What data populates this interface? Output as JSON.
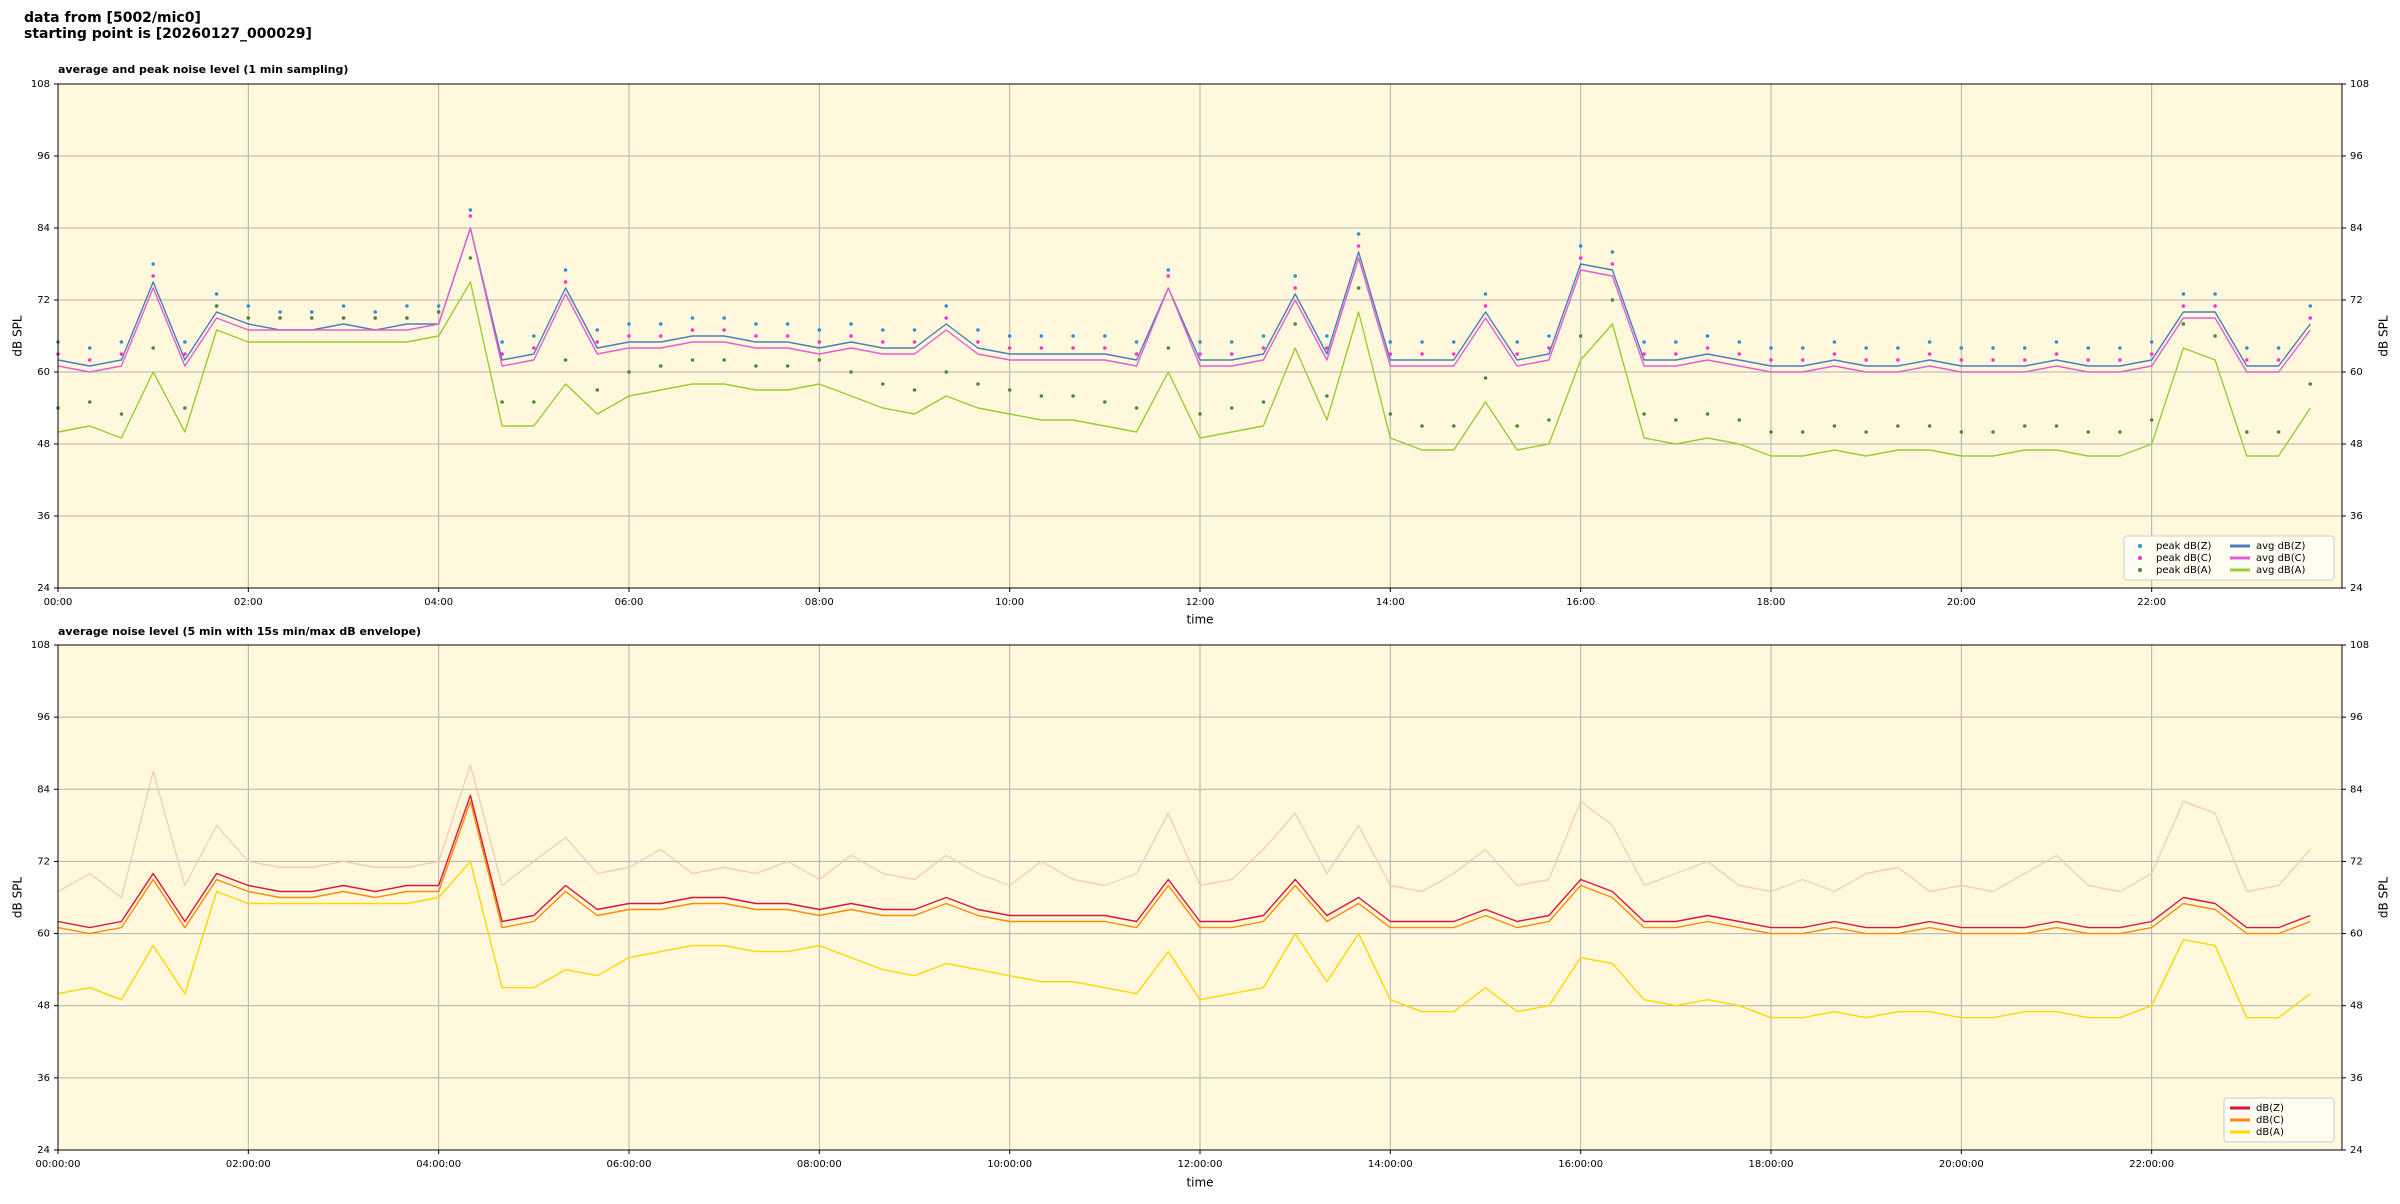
{
  "header": {
    "line1": "data from [5002/mic0]",
    "line2": "starting point is [20260127_000029]"
  },
  "chart_data": [
    {
      "type": "line",
      "title": "average and peak noise level (1 min sampling)",
      "xlabel": "time",
      "ylabel": "dB SPL",
      "x": [
        0,
        20,
        40,
        60,
        80,
        100,
        120,
        140,
        160,
        180,
        200,
        220,
        240,
        260,
        280,
        300,
        320,
        340,
        360,
        380,
        400,
        420,
        440,
        460,
        480,
        500,
        520,
        540,
        560,
        580,
        600,
        620,
        640,
        660,
        680,
        700,
        720,
        740,
        760,
        780,
        800,
        820,
        840,
        860,
        880,
        900,
        920,
        940,
        960,
        980,
        1000,
        1020,
        1040,
        1060,
        1080,
        1100,
        1120,
        1140,
        1160,
        1180,
        1200,
        1220,
        1240,
        1260,
        1280,
        1300,
        1320,
        1340,
        1360,
        1380,
        1400,
        1420
      ],
      "xlim": [
        0,
        1440
      ],
      "xticks": [
        {
          "value": 0,
          "label": "00:00"
        },
        {
          "value": 120,
          "label": "02:00"
        },
        {
          "value": 240,
          "label": "04:00"
        },
        {
          "value": 360,
          "label": "06:00"
        },
        {
          "value": 480,
          "label": "08:00"
        },
        {
          "value": 600,
          "label": "10:00"
        },
        {
          "value": 720,
          "label": "12:00"
        },
        {
          "value": 840,
          "label": "14:00"
        },
        {
          "value": 960,
          "label": "16:00"
        },
        {
          "value": 1080,
          "label": "18:00"
        },
        {
          "value": 1200,
          "label": "20:00"
        },
        {
          "value": 1320,
          "label": "22:00"
        }
      ],
      "ylim": [
        24,
        108
      ],
      "yticks": [
        24,
        36,
        48,
        60,
        72,
        84,
        96,
        108
      ],
      "grid": true,
      "legend": "lower right",
      "legend_columns": 2,
      "background": "#fff8dc",
      "series": [
        {
          "name": "peak dB(Z)",
          "color": "#2f8fd8",
          "style": "dots",
          "values": [
            65,
            64,
            65,
            78,
            65,
            73,
            71,
            70,
            70,
            71,
            70,
            71,
            71,
            87,
            65,
            66,
            77,
            67,
            68,
            68,
            69,
            69,
            68,
            68,
            67,
            68,
            67,
            67,
            71,
            67,
            66,
            66,
            66,
            66,
            65,
            77,
            65,
            65,
            66,
            76,
            66,
            83,
            65,
            65,
            65,
            73,
            65,
            66,
            81,
            80,
            65,
            65,
            66,
            65,
            64,
            64,
            65,
            64,
            64,
            65,
            64,
            64,
            64,
            65,
            64,
            64,
            65,
            73,
            73,
            64,
            64,
            71
          ]
        },
        {
          "name": "peak dB(C)",
          "color": "#ff33cc",
          "style": "dots",
          "values": [
            63,
            62,
            63,
            76,
            63,
            71,
            69,
            69,
            69,
            69,
            69,
            69,
            70,
            86,
            63,
            64,
            75,
            65,
            66,
            66,
            67,
            67,
            66,
            66,
            65,
            66,
            65,
            65,
            69,
            65,
            64,
            64,
            64,
            64,
            63,
            76,
            63,
            63,
            64,
            74,
            64,
            81,
            63,
            63,
            63,
            71,
            63,
            64,
            79,
            78,
            63,
            63,
            64,
            63,
            62,
            62,
            63,
            62,
            62,
            63,
            62,
            62,
            62,
            63,
            62,
            62,
            63,
            71,
            71,
            62,
            62,
            69
          ]
        },
        {
          "name": "peak dB(A)",
          "color": "#4f8a3a",
          "style": "dots",
          "values": [
            54,
            55,
            53,
            64,
            54,
            71,
            69,
            69,
            69,
            69,
            69,
            69,
            70,
            79,
            55,
            55,
            62,
            57,
            60,
            61,
            62,
            62,
            61,
            61,
            62,
            60,
            58,
            57,
            60,
            58,
            57,
            56,
            56,
            55,
            54,
            64,
            53,
            54,
            55,
            68,
            56,
            74,
            53,
            51,
            51,
            59,
            51,
            52,
            66,
            72,
            53,
            52,
            53,
            52,
            50,
            50,
            51,
            50,
            51,
            51,
            50,
            50,
            51,
            51,
            50,
            50,
            52,
            68,
            66,
            50,
            50,
            58
          ]
        },
        {
          "name": "avg dB(Z)",
          "color": "#4a7eb8",
          "style": "line",
          "values": [
            62,
            61,
            62,
            75,
            62,
            70,
            68,
            67,
            67,
            68,
            67,
            68,
            68,
            84,
            62,
            63,
            74,
            64,
            65,
            65,
            66,
            66,
            65,
            65,
            64,
            65,
            64,
            64,
            68,
            64,
            63,
            63,
            63,
            63,
            62,
            74,
            62,
            62,
            63,
            73,
            63,
            80,
            62,
            62,
            62,
            70,
            62,
            63,
            78,
            77,
            62,
            62,
            63,
            62,
            61,
            61,
            62,
            61,
            61,
            62,
            61,
            61,
            61,
            62,
            61,
            61,
            62,
            70,
            70,
            61,
            61,
            68
          ]
        },
        {
          "name": "avg dB(C)",
          "color": "#e060d0",
          "style": "line",
          "values": [
            61,
            60,
            61,
            74,
            61,
            69,
            67,
            67,
            67,
            67,
            67,
            67,
            68,
            84,
            61,
            62,
            73,
            63,
            64,
            64,
            65,
            65,
            64,
            64,
            63,
            64,
            63,
            63,
            67,
            63,
            62,
            62,
            62,
            62,
            61,
            74,
            61,
            61,
            62,
            72,
            62,
            79,
            61,
            61,
            61,
            69,
            61,
            62,
            77,
            76,
            61,
            61,
            62,
            61,
            60,
            60,
            61,
            60,
            60,
            61,
            60,
            60,
            60,
            61,
            60,
            60,
            61,
            69,
            69,
            60,
            60,
            67
          ]
        },
        {
          "name": "avg dB(A)",
          "color": "#9acd32",
          "style": "line",
          "values": [
            50,
            51,
            49,
            60,
            50,
            67,
            65,
            65,
            65,
            65,
            65,
            65,
            66,
            75,
            51,
            51,
            58,
            53,
            56,
            57,
            58,
            58,
            57,
            57,
            58,
            56,
            54,
            53,
            56,
            54,
            53,
            52,
            52,
            51,
            50,
            60,
            49,
            50,
            51,
            64,
            52,
            70,
            49,
            47,
            47,
            55,
            47,
            48,
            62,
            68,
            49,
            48,
            49,
            48,
            46,
            46,
            47,
            46,
            47,
            47,
            46,
            46,
            47,
            47,
            46,
            46,
            48,
            64,
            62,
            46,
            46,
            54
          ]
        }
      ]
    },
    {
      "type": "line",
      "title": "average noise level (5 min with 15s min/max dB envelope)",
      "xlabel": "time",
      "ylabel": "dB SPL",
      "x": [
        0,
        20,
        40,
        60,
        80,
        100,
        120,
        140,
        160,
        180,
        200,
        220,
        240,
        260,
        280,
        300,
        320,
        340,
        360,
        380,
        400,
        420,
        440,
        460,
        480,
        500,
        520,
        540,
        560,
        580,
        600,
        620,
        640,
        660,
        680,
        700,
        720,
        740,
        760,
        780,
        800,
        820,
        840,
        860,
        880,
        900,
        920,
        940,
        960,
        980,
        1000,
        1020,
        1040,
        1060,
        1080,
        1100,
        1120,
        1140,
        1160,
        1180,
        1200,
        1220,
        1240,
        1260,
        1280,
        1300,
        1320,
        1340,
        1360,
        1380,
        1400,
        1420
      ],
      "xlim": [
        0,
        1440
      ],
      "xticks": [
        {
          "value": 0,
          "label": "00:00:00"
        },
        {
          "value": 120,
          "label": "02:00:00"
        },
        {
          "value": 240,
          "label": "04:00:00"
        },
        {
          "value": 360,
          "label": "06:00:00"
        },
        {
          "value": 480,
          "label": "08:00:00"
        },
        {
          "value": 600,
          "label": "10:00:00"
        },
        {
          "value": 720,
          "label": "12:00:00"
        },
        {
          "value": 840,
          "label": "14:00:00"
        },
        {
          "value": 960,
          "label": "16:00:00"
        },
        {
          "value": 1080,
          "label": "18:00:00"
        },
        {
          "value": 1200,
          "label": "20:00:00"
        },
        {
          "value": 1320,
          "label": "22:00:00"
        }
      ],
      "ylim": [
        24,
        108
      ],
      "yticks": [
        24,
        36,
        48,
        60,
        72,
        84,
        96,
        108
      ],
      "grid": true,
      "legend": "lower right",
      "legend_columns": 1,
      "background": "#fff8dc",
      "envelope": {
        "color": "#f5c2ae",
        "values": [
          67,
          70,
          66,
          87,
          68,
          78,
          72,
          71,
          71,
          72,
          71,
          71,
          72,
          88,
          68,
          72,
          76,
          70,
          71,
          74,
          70,
          71,
          70,
          72,
          69,
          73,
          70,
          69,
          73,
          70,
          68,
          72,
          69,
          68,
          70,
          80,
          68,
          69,
          74,
          80,
          70,
          78,
          68,
          67,
          70,
          74,
          68,
          69,
          82,
          78,
          68,
          70,
          72,
          68,
          67,
          69,
          67,
          70,
          71,
          67,
          68,
          67,
          70,
          73,
          68,
          67,
          70,
          82,
          80,
          67,
          68,
          74
        ]
      },
      "series": [
        {
          "name": "dB(Z)",
          "color": "#dc143c",
          "style": "line",
          "values": [
            62,
            61,
            62,
            70,
            62,
            70,
            68,
            67,
            67,
            68,
            67,
            68,
            68,
            83,
            62,
            63,
            68,
            64,
            65,
            65,
            66,
            66,
            65,
            65,
            64,
            65,
            64,
            64,
            66,
            64,
            63,
            63,
            63,
            63,
            62,
            69,
            62,
            62,
            63,
            69,
            63,
            66,
            62,
            62,
            62,
            64,
            62,
            63,
            69,
            67,
            62,
            62,
            63,
            62,
            61,
            61,
            62,
            61,
            61,
            62,
            61,
            61,
            61,
            62,
            61,
            61,
            62,
            66,
            65,
            61,
            61,
            63
          ]
        },
        {
          "name": "dB(C)",
          "color": "#ff8c00",
          "style": "line",
          "values": [
            61,
            60,
            61,
            69,
            61,
            69,
            67,
            66,
            66,
            67,
            66,
            67,
            67,
            82,
            61,
            62,
            67,
            63,
            64,
            64,
            65,
            65,
            64,
            64,
            63,
            64,
            63,
            63,
            65,
            63,
            62,
            62,
            62,
            62,
            61,
            68,
            61,
            61,
            62,
            68,
            62,
            65,
            61,
            61,
            61,
            63,
            61,
            62,
            68,
            66,
            61,
            61,
            62,
            61,
            60,
            60,
            61,
            60,
            60,
            61,
            60,
            60,
            60,
            61,
            60,
            60,
            61,
            65,
            64,
            60,
            60,
            62
          ]
        },
        {
          "name": "dB(A)",
          "color": "#ffd700",
          "style": "line",
          "values": [
            50,
            51,
            49,
            58,
            50,
            67,
            65,
            65,
            65,
            65,
            65,
            65,
            66,
            72,
            51,
            51,
            54,
            53,
            56,
            57,
            58,
            58,
            57,
            57,
            58,
            56,
            54,
            53,
            55,
            54,
            53,
            52,
            52,
            51,
            50,
            57,
            49,
            50,
            51,
            60,
            52,
            60,
            49,
            47,
            47,
            51,
            47,
            48,
            56,
            55,
            49,
            48,
            49,
            48,
            46,
            46,
            47,
            46,
            47,
            47,
            46,
            46,
            47,
            47,
            46,
            46,
            48,
            59,
            58,
            46,
            46,
            50
          ]
        }
      ]
    }
  ]
}
